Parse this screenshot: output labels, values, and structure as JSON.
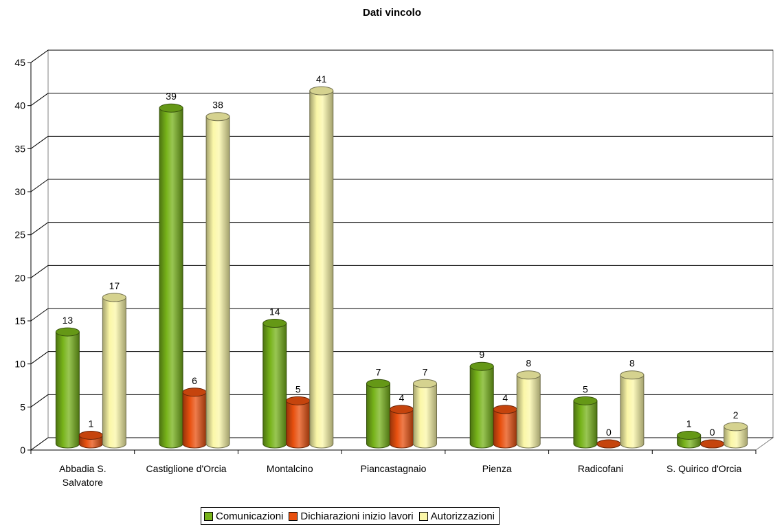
{
  "chart_data": {
    "type": "bar",
    "title": "Dati vincolo",
    "categories": [
      "Abbadia S.\nSalvatore",
      "Castiglione d'Orcia",
      "Montalcino",
      "Piancastagnaio",
      "Pienza",
      "Radicofani",
      "S. Quirico d'Orcia"
    ],
    "series": [
      {
        "name": "Comunicazioni",
        "color": "#77b31a",
        "values": [
          13,
          39,
          14,
          7,
          9,
          5,
          1
        ]
      },
      {
        "name": "Dichiarazioni inizio lavori",
        "color": "#e8500f",
        "values": [
          1,
          6,
          5,
          4,
          4,
          0,
          0
        ]
      },
      {
        "name": "Autorizzazioni",
        "color": "#fbf7a8",
        "values": [
          17,
          38,
          41,
          7,
          8,
          8,
          2
        ]
      }
    ],
    "ylim": [
      0,
      45
    ],
    "yticks": [
      0,
      5,
      10,
      15,
      20,
      25,
      30,
      35,
      40,
      45
    ],
    "grid": true,
    "legend_position": "bottom",
    "style": "3d-cylinder"
  }
}
